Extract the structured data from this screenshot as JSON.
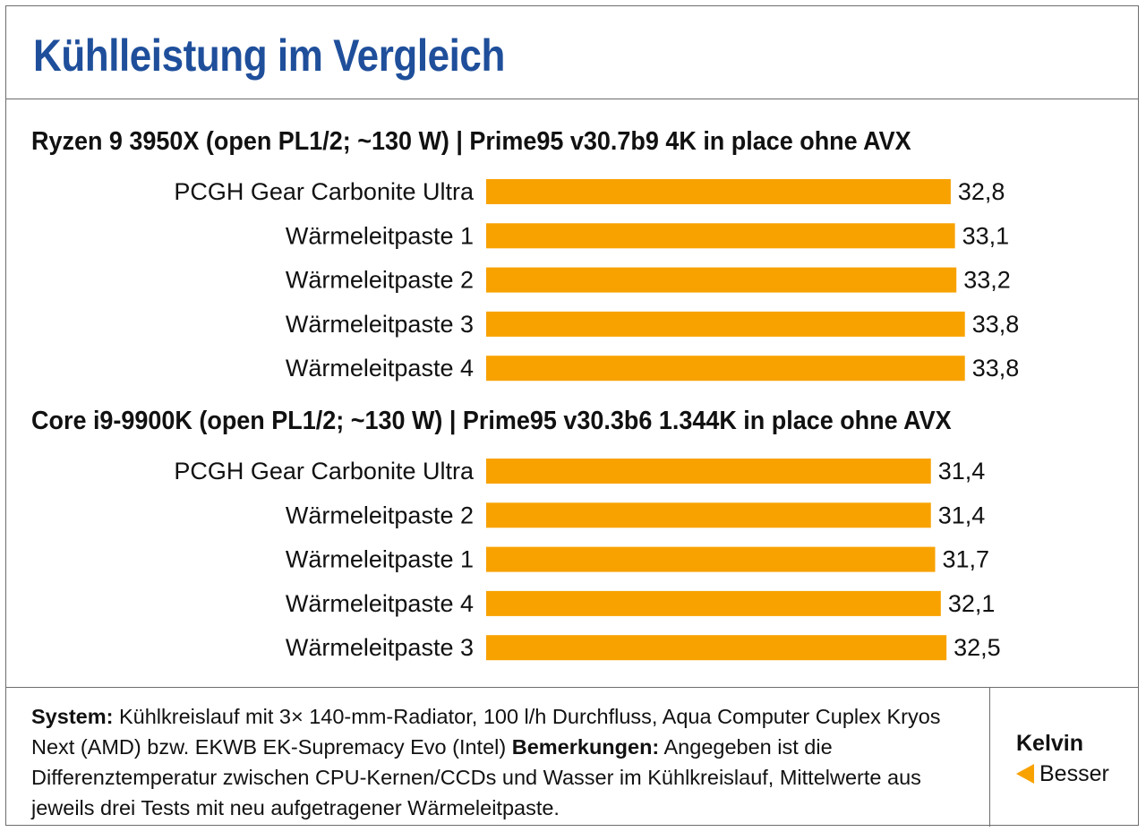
{
  "title": "Kühlleistung im Vergleich",
  "chart_data": [
    {
      "type": "bar",
      "orientation": "horizontal",
      "title": "Ryzen 9 3950X (open PL1/2; ~130 W) | Prime95 v30.7b9 4K in place ohne AVX",
      "categories": [
        "PCGH Gear Carbonite Ultra",
        "Wärmeleitpaste 1",
        "Wärmeleitpaste 2",
        "Wärmeleitpaste 3",
        "Wärmeleitpaste 4"
      ],
      "values": [
        32.8,
        33.1,
        33.2,
        33.8,
        33.8
      ],
      "value_labels": [
        "32,8",
        "33,1",
        "33,2",
        "33,8",
        "33,8"
      ],
      "color": "#f8a200"
    },
    {
      "type": "bar",
      "orientation": "horizontal",
      "title": "Core i9-9900K (open PL1/2; ~130 W) | Prime95 v30.3b6 1.344K in place ohne AVX",
      "categories": [
        "PCGH Gear Carbonite Ultra",
        "Wärmeleitpaste 2",
        "Wärmeleitpaste 1",
        "Wärmeleitpaste 4",
        "Wärmeleitpaste 3"
      ],
      "values": [
        31.4,
        31.4,
        31.7,
        32.1,
        32.5
      ],
      "value_labels": [
        "31,4",
        "31,4",
        "31,7",
        "32,1",
        "32,5"
      ],
      "color": "#f8a200"
    }
  ],
  "footer": {
    "system_label": "System:",
    "system_text": "Kühlkreislauf mit 3× 140-mm-Radiator, 100 l/h Durchfluss, Aqua Computer Cuplex Kryos Next (AMD) bzw.  EKWB EK-Supremacy Evo (Intel)",
    "remarks_label": "Bemerkungen:",
    "remarks_text": "Angegeben ist die Differenztemperatur zwischen CPU-Kernen/CCDs und Wasser im Kühlkreislauf, Mittelwerte aus jeweils drei Tests mit neu aufgetragener Wärmeleitpaste."
  },
  "legend": {
    "unit": "Kelvin",
    "direction": "Besser",
    "arrow_icon": "left-arrow-icon"
  },
  "colors": {
    "title": "#1f4f9b",
    "bar": "#f8a200",
    "border": "#6d6d6d"
  }
}
